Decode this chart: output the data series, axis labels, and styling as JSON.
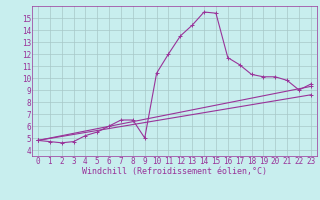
{
  "title": "",
  "xlabel": "Windchill (Refroidissement éolien,°C)",
  "ylabel": "",
  "background_color": "#c8eeee",
  "grid_color": "#a8c8c8",
  "line_color": "#993399",
  "xlim": [
    -0.5,
    23.5
  ],
  "ylim": [
    3.5,
    16.0
  ],
  "xticks": [
    0,
    1,
    2,
    3,
    4,
    5,
    6,
    7,
    8,
    9,
    10,
    11,
    12,
    13,
    14,
    15,
    16,
    17,
    18,
    19,
    20,
    21,
    22,
    23
  ],
  "yticks": [
    4,
    5,
    6,
    7,
    8,
    9,
    10,
    11,
    12,
    13,
    14,
    15
  ],
  "line1_x": [
    0,
    1,
    2,
    3,
    4,
    5,
    6,
    7,
    8,
    9,
    10,
    11,
    12,
    13,
    14,
    15,
    16,
    17,
    18,
    19,
    20,
    21,
    22,
    23
  ],
  "line1_y": [
    4.8,
    4.7,
    4.6,
    4.7,
    5.2,
    5.5,
    6.0,
    6.5,
    6.5,
    5.0,
    10.4,
    12.0,
    13.5,
    14.4,
    15.5,
    15.4,
    11.7,
    11.1,
    10.3,
    10.1,
    10.1,
    9.8,
    9.0,
    9.5
  ],
  "line2_x": [
    0,
    23
  ],
  "line2_y": [
    4.8,
    9.3
  ],
  "line3_x": [
    0,
    23
  ],
  "line3_y": [
    4.8,
    8.6
  ],
  "marker": "+",
  "markersize": 3,
  "linewidth": 0.8,
  "xlabel_fontsize": 6,
  "tick_fontsize": 5.5
}
